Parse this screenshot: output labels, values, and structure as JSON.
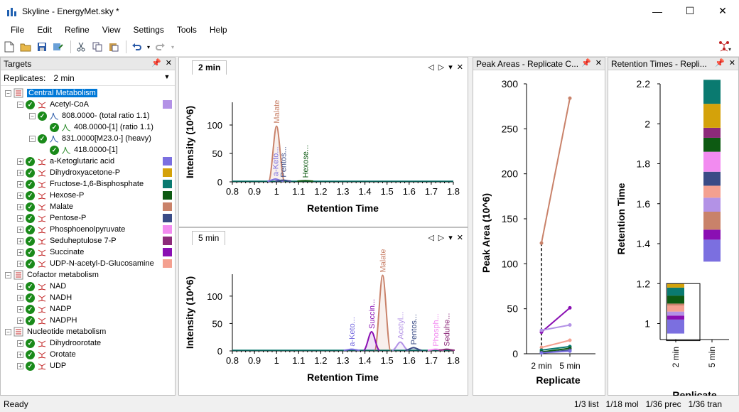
{
  "window": {
    "title": "Skyline - EnergyMet.sky *",
    "minimize": "—",
    "maximize": "☐",
    "close": "✕"
  },
  "menu": [
    "File",
    "Edit",
    "Refine",
    "View",
    "Settings",
    "Tools",
    "Help"
  ],
  "targets_panel": {
    "title": "Targets",
    "replicates_label": "Replicates:",
    "replicates_value": "2 min",
    "tree": [
      {
        "level": 0,
        "label": "Central Metabolism",
        "type": "folder",
        "selected": true
      },
      {
        "level": 1,
        "label": "Acetyl-CoA",
        "type": "mol",
        "color": "#b392e6"
      },
      {
        "level": 2,
        "label": "808.0000- (total ratio 1.1)",
        "type": "prec"
      },
      {
        "level": 3,
        "label": "408.0000-[1] (ratio 1.1)",
        "type": "tran"
      },
      {
        "level": 2,
        "label": "831.0000[M23.0-] (heavy)",
        "type": "prec"
      },
      {
        "level": 3,
        "label": "418.0000-[1]",
        "type": "tran"
      },
      {
        "level": 1,
        "label": "a-Ketoglutaric acid",
        "type": "mol",
        "color": "#7b6fe0"
      },
      {
        "level": 1,
        "label": "Dihydroxyacetone-P",
        "type": "mol",
        "color": "#d4a20a"
      },
      {
        "level": 1,
        "label": "Fructose-1,6-Bisphosphate",
        "type": "mol",
        "color": "#0a7a70"
      },
      {
        "level": 1,
        "label": "Hexose-P",
        "type": "mol",
        "color": "#0d5a12"
      },
      {
        "level": 1,
        "label": "Malate",
        "type": "mol",
        "color": "#c9826a"
      },
      {
        "level": 1,
        "label": "Pentose-P",
        "type": "mol",
        "color": "#3a4b86"
      },
      {
        "level": 1,
        "label": "Phosphoenolpyruvate",
        "type": "mol",
        "color": "#f28bf0"
      },
      {
        "level": 1,
        "label": "Seduheptulose 7-P",
        "type": "mol",
        "color": "#8c2a7a"
      },
      {
        "level": 1,
        "label": "Succinate",
        "type": "mol",
        "color": "#8a0fb3"
      },
      {
        "level": 1,
        "label": "UDP-N-acetyl-D-Glucosamine",
        "type": "mol",
        "color": "#f4a090"
      },
      {
        "level": 0,
        "label": "Cofactor metabolism",
        "type": "folder"
      },
      {
        "level": 1,
        "label": "NAD",
        "type": "mol"
      },
      {
        "level": 1,
        "label": "NADH",
        "type": "mol"
      },
      {
        "level": 1,
        "label": "NADP",
        "type": "mol"
      },
      {
        "level": 1,
        "label": "NADPH",
        "type": "mol"
      },
      {
        "level": 0,
        "label": "Nucleotide metabolism",
        "type": "folder"
      },
      {
        "level": 1,
        "label": "Dihydroorotate",
        "type": "mol"
      },
      {
        "level": 1,
        "label": "Orotate",
        "type": "mol"
      },
      {
        "level": 1,
        "label": "UDP",
        "type": "mol"
      }
    ]
  },
  "chrom1": {
    "tab": "2 min",
    "chart_data": {
      "type": "line",
      "xlabel": "Retention Time",
      "ylabel": "Intensity (10^6)",
      "xlim": [
        0.8,
        1.8
      ],
      "ylim": [
        0,
        140
      ],
      "xticks": [
        "0.8",
        "0.9",
        "1",
        "1.1",
        "1.2",
        "1.3",
        "1.4",
        "1.5",
        "1.6",
        "1.7",
        "1.8"
      ],
      "yticks": [
        "0",
        "50",
        "100"
      ],
      "peaks": [
        {
          "name": "Malate",
          "x": 1.0,
          "height": 98,
          "color": "#c9826a",
          "label_color": "#c9826a"
        },
        {
          "name": "a-Keto...",
          "x": 0.995,
          "height": 5,
          "color": "#7b6fe0",
          "label_color": "#7b6fe0"
        },
        {
          "name": "Pentos...",
          "x": 1.03,
          "height": 3,
          "color": "#3a4b86",
          "label_color": "#3a4b86"
        },
        {
          "name": "Hexose...",
          "x": 1.13,
          "height": 2,
          "color": "#0d5a12",
          "label_color": "#0d5a12"
        }
      ]
    }
  },
  "chrom2": {
    "tab": "5 min",
    "chart_data": {
      "type": "line",
      "xlabel": "Retention Time",
      "ylabel": "Intensity (10^6)",
      "xlim": [
        0.8,
        1.8
      ],
      "ylim": [
        0,
        140
      ],
      "xticks": [
        "0.8",
        "0.9",
        "1",
        "1.1",
        "1.2",
        "1.3",
        "1.4",
        "1.5",
        "1.6",
        "1.7",
        "1.8"
      ],
      "yticks": [
        "0",
        "50",
        "100"
      ],
      "peaks": [
        {
          "name": "Malate",
          "x": 1.48,
          "height": 138,
          "color": "#c9826a",
          "label": ""
        },
        {
          "name": "Succin...",
          "x": 1.43,
          "height": 35,
          "color": "#8a0fb3"
        },
        {
          "name": "a-Keto...",
          "x": 1.34,
          "height": 3,
          "color": "#7b6fe0"
        },
        {
          "name": "Acetyl...",
          "x": 1.56,
          "height": 16,
          "color": "#b392e6"
        },
        {
          "name": "Pentos...",
          "x": 1.62,
          "height": 6,
          "color": "#3a4b86"
        },
        {
          "name": "Phosph...",
          "x": 1.72,
          "height": 3,
          "color": "#f28bf0"
        },
        {
          "name": "Seduhe...",
          "x": 1.77,
          "height": 3,
          "color": "#8c2a7a"
        }
      ]
    }
  },
  "peak_areas": {
    "title": "Peak Areas - Replicate C...",
    "chart_data": {
      "type": "line",
      "xlabel": "Replicate",
      "ylabel": "Peak Area (10^6)",
      "categories": [
        "2 min",
        "5 min"
      ],
      "ylim": [
        0,
        300
      ],
      "yticks": [
        "0",
        "50",
        "100",
        "150",
        "200",
        "250",
        "300"
      ],
      "series": [
        {
          "color": "#c9826a",
          "values": [
            123,
            284
          ]
        },
        {
          "color": "#8a0fb3",
          "values": [
            24,
            51
          ]
        },
        {
          "color": "#b392e6",
          "values": [
            26,
            32
          ]
        },
        {
          "color": "#f4a090",
          "values": [
            7,
            15
          ]
        },
        {
          "color": "#0a7a70",
          "values": [
            4,
            8
          ]
        },
        {
          "color": "#0d5a12",
          "values": [
            2,
            6
          ]
        },
        {
          "color": "#3a4b86",
          "values": [
            1,
            4
          ]
        },
        {
          "color": "#7b6fe0",
          "values": [
            1,
            3
          ]
        }
      ]
    }
  },
  "retention_times": {
    "title": "Retention Times - Repli...",
    "chart_data": {
      "type": "bar",
      "xlabel": "Replicate",
      "ylabel": "Retention Time",
      "categories": [
        "2 min",
        "5 min"
      ],
      "ylim": [
        0.92,
        2.2
      ],
      "yticks": [
        "1",
        "1.2",
        "1.4",
        "1.6",
        "1.8",
        "2",
        "2.2"
      ],
      "bars_2min": [
        {
          "color": "#7b6fe0",
          "from": 0.95,
          "to": 1.02
        },
        {
          "color": "#8a0fb3",
          "from": 1.02,
          "to": 1.04
        },
        {
          "color": "#b392e6",
          "from": 1.04,
          "to": 1.06
        },
        {
          "color": "#f4a090",
          "from": 1.06,
          "to": 1.09
        },
        {
          "color": "#c9826a",
          "from": 1.09,
          "to": 1.1
        },
        {
          "color": "#0d5a12",
          "from": 1.1,
          "to": 1.14
        },
        {
          "color": "#0a7a70",
          "from": 1.14,
          "to": 1.18
        },
        {
          "color": "#d4a20a",
          "from": 1.18,
          "to": 1.2
        }
      ],
      "bars_5min": [
        {
          "color": "#7b6fe0",
          "from": 1.31,
          "to": 1.42
        },
        {
          "color": "#8a0fb3",
          "from": 1.42,
          "to": 1.47
        },
        {
          "color": "#c9826a",
          "from": 1.47,
          "to": 1.56
        },
        {
          "color": "#b392e6",
          "from": 1.56,
          "to": 1.63
        },
        {
          "color": "#f4a090",
          "from": 1.63,
          "to": 1.69
        },
        {
          "color": "#3a4b86",
          "from": 1.69,
          "to": 1.76
        },
        {
          "color": "#f28bf0",
          "from": 1.76,
          "to": 1.86
        },
        {
          "color": "#0d5a12",
          "from": 1.86,
          "to": 1.93
        },
        {
          "color": "#8c2a7a",
          "from": 1.93,
          "to": 1.98
        },
        {
          "color": "#d4a20a",
          "from": 1.98,
          "to": 2.1
        },
        {
          "color": "#0a7a70",
          "from": 2.1,
          "to": 2.22
        }
      ]
    }
  },
  "status": {
    "left": "Ready",
    "list": "1/3 list",
    "mol": "1/18 mol",
    "prec": "1/36 prec",
    "tran": "1/36 tran"
  }
}
